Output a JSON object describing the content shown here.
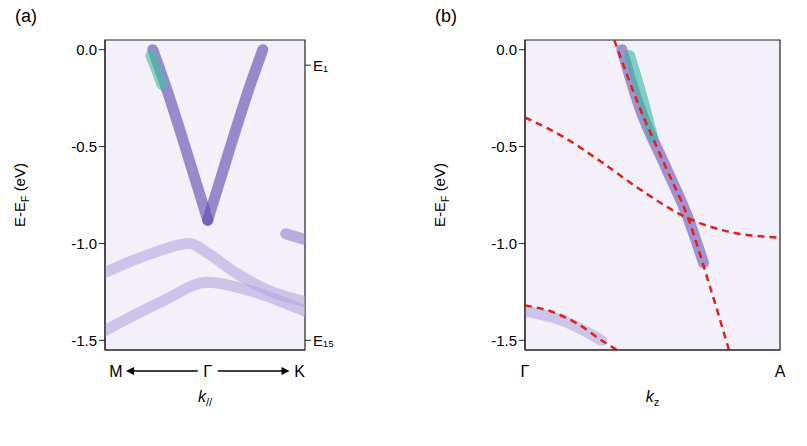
{
  "chart_data": [
    {
      "type": "line",
      "title": "(a)",
      "y_label": [
        {
          "text": "E-E"
        },
        {
          "text": "F",
          "sub": true
        },
        {
          "text": " (eV)"
        }
      ],
      "x_label": [
        {
          "text": "k"
        },
        {
          "text": "//",
          "sub": true
        }
      ],
      "xlim": [
        -1.12,
        1.06
      ],
      "xticks": [
        {
          "value": -1,
          "label": "M"
        },
        {
          "value": 0,
          "label": "Γ"
        },
        {
          "value": 1,
          "label": "K"
        }
      ],
      "ylim": [
        -1.55,
        0.05
      ],
      "yticks": [
        {
          "value": 0,
          "label": "0.0"
        },
        -0.5,
        {
          "value": -1,
          "label": "-1.0"
        },
        -1.5
      ],
      "y2lim": [
        -1.55,
        0.05
      ],
      "y2ticks": [
        {
          "value": -0.08,
          "label": "E₁"
        },
        {
          "value": -1.5,
          "label": "E₁₅"
        }
      ],
      "series": [
        {
          "x": [
            -1.12,
            -0.6,
            -0.2,
            0,
            0.3,
            0.7,
            1.06
          ],
          "values": [
            -1.15,
            -1.05,
            -1.0,
            -1.05,
            -1.15,
            -1.25,
            -1.3
          ],
          "color": "#b3a6dd",
          "line_style": "broad"
        },
        {
          "x": [
            -1.12,
            -0.5,
            0,
            0.5,
            1.06
          ],
          "values": [
            -1.45,
            -1.3,
            -1.2,
            -1.25,
            -1.35
          ],
          "color": "#b3a6dd",
          "line_style": "broad"
        },
        {
          "x": [
            0.85,
            1.06
          ],
          "values": [
            -0.95,
            -0.98
          ],
          "color": "#8f7fcc",
          "line_style": "broad"
        },
        {
          "x": [
            -0.6,
            -0.45,
            -0.3,
            -0.15,
            0
          ],
          "values": [
            0,
            -0.2,
            -0.42,
            -0.65,
            -0.88
          ],
          "color": "#5e45ad",
          "line_style": "broad"
        },
        {
          "x": [
            0,
            0.15,
            0.3,
            0.45,
            0.6
          ],
          "values": [
            -0.88,
            -0.65,
            -0.42,
            -0.2,
            0
          ],
          "color": "#5e45ad",
          "line_style": "broad"
        },
        {
          "x": [
            -0.62,
            -0.56,
            -0.5
          ],
          "values": [
            -0.03,
            -0.1,
            -0.18
          ],
          "color": "#3fbfa0",
          "line_style": "broad"
        }
      ]
    },
    {
      "type": "line",
      "title": "(b)",
      "y_label": [
        {
          "text": "E-E"
        },
        {
          "text": "F",
          "sub": true
        },
        {
          "text": " (eV)"
        }
      ],
      "x_label": [
        {
          "text": "k"
        },
        {
          "text": "z",
          "sub": true
        }
      ],
      "xlim": [
        0,
        1
      ],
      "xticks": [
        {
          "value": 0,
          "label": "Γ"
        },
        {
          "value": 1,
          "label": "A"
        }
      ],
      "ylim": [
        -1.55,
        0.05
      ],
      "yticks": [
        {
          "value": 0,
          "label": "0.0"
        },
        -0.5,
        {
          "value": -1,
          "label": "-1.0"
        },
        -1.5
      ],
      "series": [
        {
          "x": [
            0,
            0.15,
            0.3
          ],
          "values": [
            -1.35,
            -1.4,
            -1.5
          ],
          "color": "#b3a6dd",
          "line_style": "broad"
        },
        {
          "x": [
            0.38,
            0.45,
            0.55,
            0.64,
            0.7
          ],
          "values": [
            0,
            -0.3,
            -0.6,
            -0.87,
            -1.1
          ],
          "color": "#6b52b5",
          "line_style": "broad"
        },
        {
          "x": [
            0.41,
            0.46,
            0.5
          ],
          "values": [
            -0.03,
            -0.25,
            -0.45
          ],
          "color": "#35b8a0",
          "line_style": "broad"
        },
        {
          "x": [
            0.35,
            0.45,
            0.55,
            0.64,
            0.72,
            0.8
          ],
          "values": [
            0.05,
            -0.3,
            -0.6,
            -0.87,
            -1.2,
            -1.55
          ],
          "color": "#e0201b",
          "line_style": "dashed"
        },
        {
          "x": [
            0,
            0.15,
            0.3,
            0.45,
            0.64,
            0.8,
            1.0
          ],
          "values": [
            -0.35,
            -0.45,
            -0.58,
            -0.72,
            -0.87,
            -0.94,
            -0.97
          ],
          "color": "#e0201b",
          "line_style": "dashed"
        },
        {
          "x": [
            0,
            0.1,
            0.2,
            0.3,
            0.36
          ],
          "values": [
            -1.32,
            -1.35,
            -1.41,
            -1.5,
            -1.55
          ],
          "color": "#e0201b",
          "line_style": "dashed"
        }
      ]
    }
  ]
}
